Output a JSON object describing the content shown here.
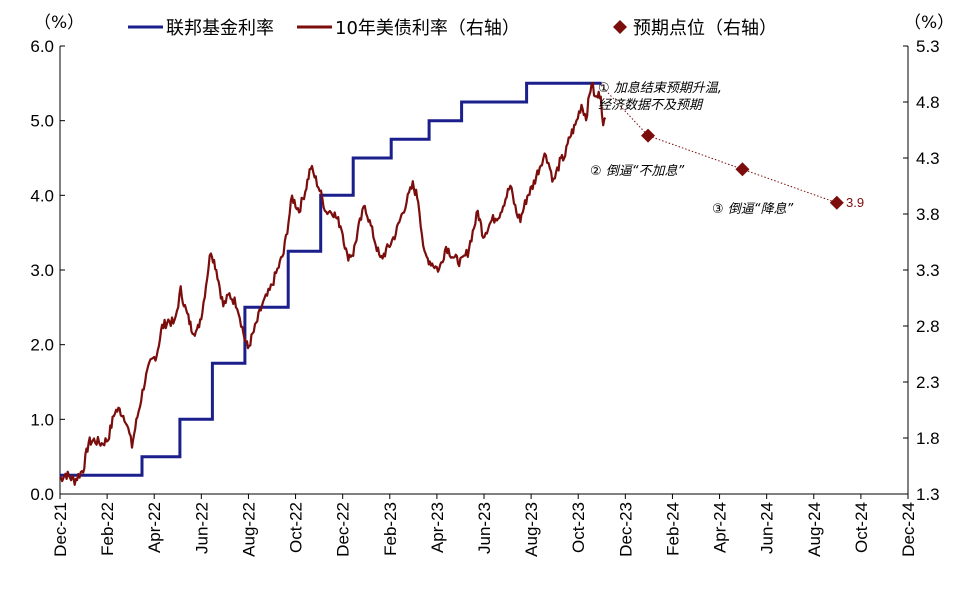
{
  "chart_data": {
    "type": "line",
    "units": {
      "left": "（%）",
      "right": "（%）"
    },
    "legend": [
      {
        "name": "联邦基金利率",
        "color": "#1a1f8c",
        "marker": "line"
      },
      {
        "name": "10年美债利率（右轴）",
        "color": "#7b0d0d",
        "marker": "line"
      },
      {
        "name": "预期点位（右轴）",
        "color": "#7b0d0d",
        "marker": "diamond"
      }
    ],
    "y_left": {
      "min": 0,
      "max": 6,
      "ticks": [
        "0.0",
        "1.0",
        "2.0",
        "3.0",
        "4.0",
        "5.0",
        "6.0"
      ]
    },
    "y_right": {
      "min": 1.3,
      "max": 5.3,
      "ticks": [
        "1.3",
        "1.8",
        "2.3",
        "2.8",
        "3.3",
        "3.8",
        "4.3",
        "4.8",
        "5.3"
      ]
    },
    "x_ticks": [
      "Dec-21",
      "Feb-22",
      "Apr-22",
      "Jun-22",
      "Aug-22",
      "Oct-22",
      "Dec-22",
      "Feb-23",
      "Apr-23",
      "Jun-23",
      "Aug-23",
      "Oct-23",
      "Dec-23",
      "Feb-24",
      "Apr-24",
      "Jun-24",
      "Aug-24",
      "Oct-24",
      "Dec-24"
    ],
    "fed_funds_rate": {
      "name": "联邦基金利率",
      "color": "#1a1f8c",
      "points": [
        [
          "2021-12-01",
          0.25
        ],
        [
          "2022-03-17",
          0.25
        ],
        [
          "2022-03-17",
          0.5
        ],
        [
          "2022-05-05",
          0.5
        ],
        [
          "2022-05-05",
          1.0
        ],
        [
          "2022-06-16",
          1.0
        ],
        [
          "2022-06-16",
          1.75
        ],
        [
          "2022-07-28",
          1.75
        ],
        [
          "2022-07-28",
          2.5
        ],
        [
          "2022-09-22",
          2.5
        ],
        [
          "2022-09-22",
          3.25
        ],
        [
          "2022-11-03",
          3.25
        ],
        [
          "2022-11-03",
          4.0
        ],
        [
          "2022-12-15",
          4.0
        ],
        [
          "2022-12-15",
          4.5
        ],
        [
          "2023-02-02",
          4.5
        ],
        [
          "2023-02-02",
          4.75
        ],
        [
          "2023-03-23",
          4.75
        ],
        [
          "2023-03-23",
          5.0
        ],
        [
          "2023-05-04",
          5.0
        ],
        [
          "2023-05-04",
          5.25
        ],
        [
          "2023-07-27",
          5.25
        ],
        [
          "2023-07-27",
          5.5
        ],
        [
          "2023-11-01",
          5.5
        ]
      ]
    },
    "treasury_10y": {
      "name": "10年美债利率（右轴）",
      "color": "#7b0d0d",
      "points": [
        [
          "2021-12-01",
          1.43
        ],
        [
          "2021-12-08",
          1.48
        ],
        [
          "2021-12-20",
          1.42
        ],
        [
          "2021-12-31",
          1.52
        ],
        [
          "2022-01-07",
          1.76
        ],
        [
          "2022-01-14",
          1.78
        ],
        [
          "2022-01-24",
          1.75
        ],
        [
          "2022-02-01",
          1.79
        ],
        [
          "2022-02-10",
          2.04
        ],
        [
          "2022-02-16",
          2.05
        ],
        [
          "2022-02-24",
          1.97
        ],
        [
          "2022-03-04",
          1.73
        ],
        [
          "2022-03-11",
          1.99
        ],
        [
          "2022-03-21",
          2.32
        ],
        [
          "2022-03-28",
          2.47
        ],
        [
          "2022-04-05",
          2.55
        ],
        [
          "2022-04-12",
          2.79
        ],
        [
          "2022-04-20",
          2.85
        ],
        [
          "2022-04-28",
          2.82
        ],
        [
          "2022-05-06",
          3.12
        ],
        [
          "2022-05-13",
          2.93
        ],
        [
          "2022-05-20",
          2.78
        ],
        [
          "2022-05-27",
          2.74
        ],
        [
          "2022-06-03",
          2.94
        ],
        [
          "2022-06-14",
          3.48
        ],
        [
          "2022-06-21",
          3.31
        ],
        [
          "2022-06-30",
          2.98
        ],
        [
          "2022-07-08",
          3.08
        ],
        [
          "2022-07-18",
          2.99
        ],
        [
          "2022-07-28",
          2.68
        ],
        [
          "2022-08-01",
          2.6
        ],
        [
          "2022-08-10",
          2.78
        ],
        [
          "2022-08-19",
          2.98
        ],
        [
          "2022-08-29",
          3.11
        ],
        [
          "2022-09-08",
          3.3
        ],
        [
          "2022-09-16",
          3.45
        ],
        [
          "2022-09-27",
          3.95
        ],
        [
          "2022-10-06",
          3.83
        ],
        [
          "2022-10-14",
          4.01
        ],
        [
          "2022-10-21",
          4.22
        ],
        [
          "2022-10-31",
          4.05
        ],
        [
          "2022-11-10",
          3.82
        ],
        [
          "2022-11-18",
          3.83
        ],
        [
          "2022-11-30",
          3.68
        ],
        [
          "2022-12-07",
          3.42
        ],
        [
          "2022-12-15",
          3.45
        ],
        [
          "2022-12-22",
          3.68
        ],
        [
          "2022-12-30",
          3.88
        ],
        [
          "2023-01-10",
          3.61
        ],
        [
          "2023-01-19",
          3.39
        ],
        [
          "2023-01-31",
          3.52
        ],
        [
          "2023-02-08",
          3.63
        ],
        [
          "2023-02-17",
          3.82
        ],
        [
          "2023-03-02",
          4.06
        ],
        [
          "2023-03-09",
          3.93
        ],
        [
          "2023-03-17",
          3.43
        ],
        [
          "2023-03-24",
          3.38
        ],
        [
          "2023-04-05",
          3.3
        ],
        [
          "2023-04-14",
          3.51
        ],
        [
          "2023-04-25",
          3.4
        ],
        [
          "2023-05-04",
          3.37
        ],
        [
          "2023-05-12",
          3.46
        ],
        [
          "2023-05-25",
          3.82
        ],
        [
          "2023-06-01",
          3.61
        ],
        [
          "2023-06-12",
          3.74
        ],
        [
          "2023-06-22",
          3.8
        ],
        [
          "2023-07-06",
          4.05
        ],
        [
          "2023-07-14",
          3.81
        ],
        [
          "2023-07-19",
          3.75
        ],
        [
          "2023-07-28",
          3.96
        ],
        [
          "2023-08-04",
          4.05
        ],
        [
          "2023-08-16",
          4.28
        ],
        [
          "2023-08-21",
          4.34
        ],
        [
          "2023-08-31",
          4.09
        ],
        [
          "2023-09-08",
          4.26
        ],
        [
          "2023-09-15",
          4.33
        ],
        [
          "2023-09-21",
          4.49
        ],
        [
          "2023-09-28",
          4.59
        ],
        [
          "2023-10-06",
          4.78
        ],
        [
          "2023-10-12",
          4.66
        ],
        [
          "2023-10-19",
          4.98
        ],
        [
          "2023-10-24",
          4.83
        ],
        [
          "2023-10-31",
          4.88
        ],
        [
          "2023-11-03",
          4.57
        ],
        [
          "2023-11-06",
          4.66
        ]
      ]
    },
    "expected_points": {
      "name": "预期点位（右轴）",
      "color": "#7b0d0d",
      "points": [
        [
          "2023-12-31",
          4.5
        ],
        [
          "2024-05-01",
          4.2
        ],
        [
          "2024-08-31",
          3.9
        ]
      ]
    },
    "annotations": [
      {
        "id": "a1",
        "lines": [
          "① 加息结束预期升温,",
          "经济数据不及预期"
        ]
      },
      {
        "id": "a2",
        "lines": [
          "② 倒逼“不加息”"
        ]
      },
      {
        "id": "a3",
        "lines": [
          "③ 倒逼“降息”"
        ]
      }
    ],
    "point_label": "3.9"
  }
}
